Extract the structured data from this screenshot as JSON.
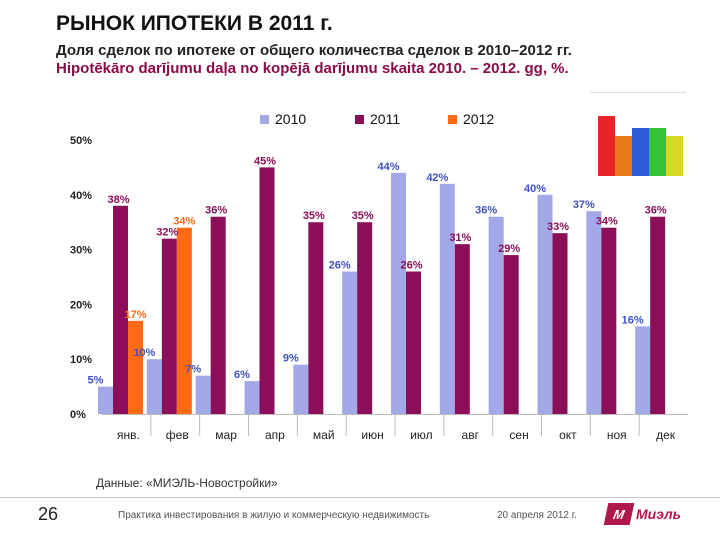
{
  "header": {
    "title": "РЫНОК ИПОТЕКИ В 2011 г.",
    "subtitle_ru": "Доля сделок по ипотеке от общего количества сделок в 2010–2012 гг.",
    "subtitle_lv": "Hipotēkāro darījumu daļa no kopējā darījumu skaita 2010. – 2012. gg, %."
  },
  "chart_data": {
    "type": "bar",
    "categories": [
      "янв.",
      "фев",
      "мар",
      "апр",
      "май",
      "июн",
      "июл",
      "авг",
      "сен",
      "окт",
      "ноя",
      "дек"
    ],
    "series": [
      {
        "name": "2010",
        "color": "#a3a9e8",
        "values": [
          5,
          10,
          7,
          6,
          9,
          26,
          44,
          42,
          36,
          40,
          37,
          16
        ]
      },
      {
        "name": "2011",
        "color": "#8b0f58",
        "values": [
          38,
          32,
          36,
          45,
          35,
          35,
          26,
          31,
          29,
          33,
          34,
          36
        ]
      },
      {
        "name": "2012",
        "color": "#ff6a13",
        "values": [
          17,
          34,
          null,
          null,
          null,
          null,
          null,
          null,
          null,
          null,
          null,
          null
        ]
      }
    ],
    "data_labels": {
      "2010": [
        "5%",
        "10%",
        "7%",
        "6%",
        "9%",
        "26%",
        "44%",
        "42%",
        "36%",
        "40%",
        "37%",
        "16%"
      ],
      "2011": [
        "38%",
        "32%",
        "36%",
        "45%",
        "35%",
        "35%",
        "26%",
        "31%",
        "29%",
        "33%",
        "34%",
        "36%"
      ],
      "2012": [
        "17%",
        "34%",
        null,
        null,
        null,
        null,
        null,
        null,
        null,
        null,
        null,
        null
      ]
    },
    "label_colors": {
      "2010": "#3f51c4",
      "2011": "#8b0f58",
      "2012": "#ff6a13"
    },
    "yticks": [
      "0%",
      "10%",
      "20%",
      "30%",
      "40%",
      "50%"
    ],
    "ylim": [
      0,
      50
    ],
    "grid": false,
    "legend": "top-center",
    "title": "",
    "xlabel": "",
    "ylabel": ""
  },
  "thumbnail": {
    "colors": [
      "#e8232a",
      "#e87a1c",
      "#2c5bd6",
      "#35c23a",
      "#d9d726"
    ]
  },
  "source": "Данные:  «МИЭЛЬ-Новостройки»",
  "footer": {
    "page": "26",
    "text": "Практика инвестирования в жилую и коммерческую недвижимость",
    "date": "20 апреля 2012 г.",
    "logo_mark": "М",
    "logo_text": "Миэль"
  }
}
